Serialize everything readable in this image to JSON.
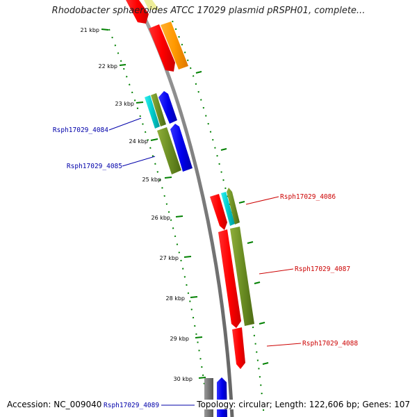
{
  "title": "Rhodobacter sphaeroides ATCC 17029 plasmid pRSPH01, complete...",
  "footer": {
    "accession": "Accession: NC_009040",
    "topology": "Topology: circular; Length: 122,606 bp; Genes: 107"
  },
  "ticks": [
    "21 kbp",
    "22 kbp",
    "23 kbp",
    "24 kbp",
    "25 kbp",
    "26 kbp",
    "27 kbp",
    "28 kbp",
    "29 kbp",
    "30 kbp"
  ],
  "genes": [
    {
      "name": "Rsph17029_4084",
      "color": "#0000aa"
    },
    {
      "name": "Rsph17029_4085",
      "color": "#0000aa"
    },
    {
      "name": "Rsph17029_4086",
      "color": "#cc0000"
    },
    {
      "name": "Rsph17029_4087",
      "color": "#cc0000"
    },
    {
      "name": "Rsph17029_4088",
      "color": "#cc0000"
    },
    {
      "name": "Rsph17029_4089",
      "color": "#0000aa"
    }
  ],
  "colors": {
    "backbone": "#888888",
    "tick_dots": "#008000",
    "red": "#ff0000",
    "orange": "#ff9900",
    "olive": "#6b8e23",
    "blue": "#0000ee",
    "cyan": "#00cccc",
    "gray": "#777777",
    "pale_yellow": "#eeee99"
  }
}
